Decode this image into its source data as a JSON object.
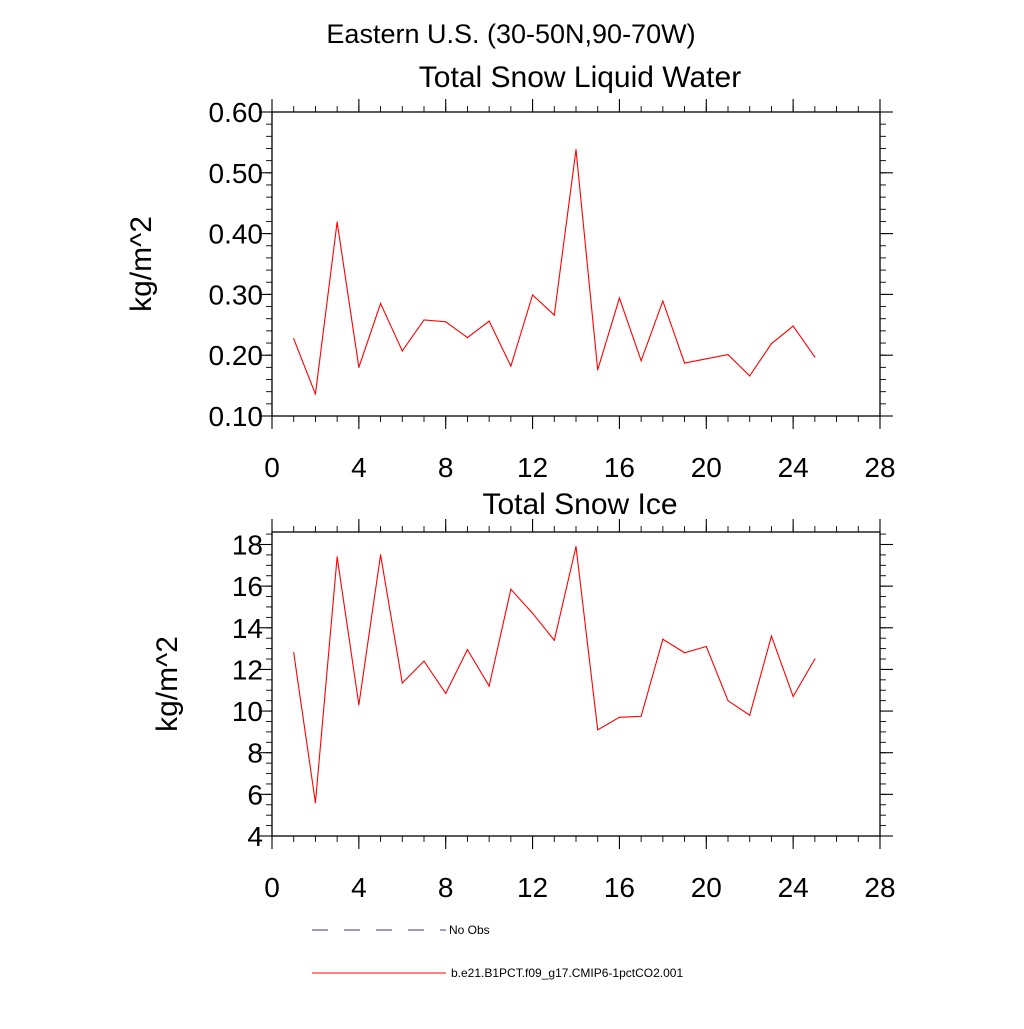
{
  "title": "Eastern U.S. (30-50N,90-70W)",
  "chart_data": [
    {
      "type": "line",
      "title": "Total Snow Liquid Water",
      "xlabel": "",
      "ylabel": "kg/m^2",
      "xlim": [
        0,
        28
      ],
      "ylim": [
        0.1,
        0.6
      ],
      "xticks": [
        0,
        4,
        8,
        12,
        16,
        20,
        24,
        28
      ],
      "xtick_labels": [
        "0",
        "4",
        "8",
        "12",
        "16",
        "20",
        "24",
        "28"
      ],
      "yticks": [
        0.1,
        0.2,
        0.3,
        0.4,
        0.5,
        0.6
      ],
      "ytick_labels": [
        "0.10",
        "0.20",
        "0.30",
        "0.40",
        "0.50",
        "0.60"
      ],
      "y_minor_step": 0.02,
      "x_minor_step": 1,
      "grid": false,
      "series": [
        {
          "name": "b.e21.B1PCT.f09_g17.CMIP6-1pctCO2.001",
          "color": "#ff0000",
          "x": [
            1,
            2,
            3,
            4,
            5,
            6,
            7,
            8,
            9,
            10,
            11,
            12,
            13,
            14,
            15,
            16,
            17,
            18,
            19,
            20,
            21,
            22,
            23,
            24,
            25
          ],
          "values": [
            0.227,
            0.136,
            0.419,
            0.18,
            0.285,
            0.207,
            0.258,
            0.255,
            0.229,
            0.256,
            0.182,
            0.299,
            0.266,
            0.538,
            0.176,
            0.294,
            0.191,
            0.289,
            0.187,
            0.194,
            0.201,
            0.166,
            0.219,
            0.248,
            0.197
          ]
        }
      ]
    },
    {
      "type": "line",
      "title": "Total Snow Ice",
      "xlabel": "",
      "ylabel": "kg/m^2",
      "xlim": [
        0,
        28
      ],
      "ylim": [
        4,
        18.6
      ],
      "xticks": [
        0,
        4,
        8,
        12,
        16,
        20,
        24,
        28
      ],
      "xtick_labels": [
        "0",
        "4",
        "8",
        "12",
        "16",
        "20",
        "24",
        "28"
      ],
      "yticks": [
        4,
        6,
        8,
        10,
        12,
        14,
        16,
        18
      ],
      "ytick_labels": [
        "4",
        "6",
        "8",
        "10",
        "12",
        "14",
        "16",
        "18"
      ],
      "y_minor_step": 0.5,
      "x_minor_step": 1,
      "grid": false,
      "series": [
        {
          "name": "b.e21.B1PCT.f09_g17.CMIP6-1pctCO2.001",
          "color": "#ff0000",
          "x": [
            1,
            2,
            3,
            4,
            5,
            6,
            7,
            8,
            9,
            10,
            11,
            12,
            13,
            14,
            15,
            16,
            17,
            18,
            19,
            20,
            21,
            22,
            23,
            24,
            25
          ],
          "values": [
            12.8,
            5.6,
            17.4,
            10.3,
            17.5,
            11.35,
            12.4,
            10.85,
            12.95,
            11.2,
            15.85,
            14.7,
            13.4,
            17.9,
            9.1,
            9.7,
            9.75,
            13.45,
            12.8,
            13.1,
            10.5,
            9.8,
            13.6,
            10.7,
            12.5
          ]
        }
      ]
    }
  ],
  "legend": {
    "placement": "bottom-left",
    "items": [
      {
        "label": "No Obs",
        "color": "#3a3a8c",
        "style": "dashed"
      },
      {
        "label": "b.e21.B1PCT.f09_g17.CMIP6-1pctCO2.001",
        "color": "#ff0000",
        "style": "solid"
      }
    ]
  }
}
